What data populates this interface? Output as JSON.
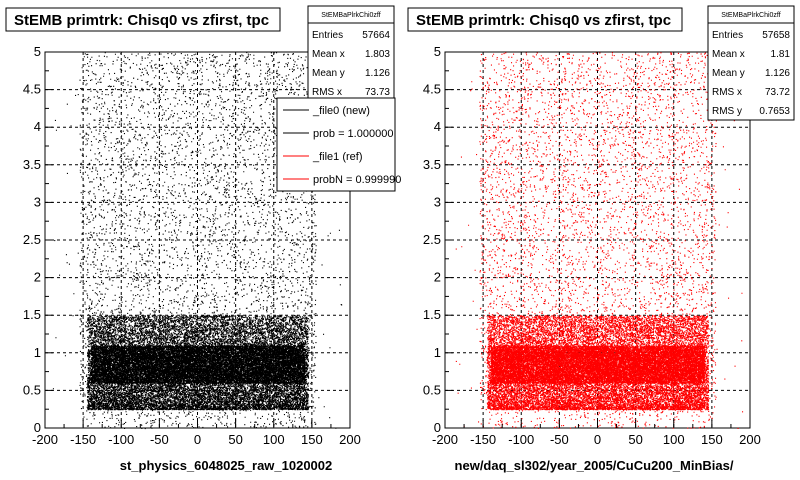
{
  "window": {
    "background": "#ffffff"
  },
  "chart_data": [
    {
      "type": "scatter",
      "title": "StEMB primtrk: Chisq0 vs zfirst, tpc",
      "xlabel": "st_physics_6048025_raw_1020002",
      "ylabel": "",
      "xlim": [
        -200,
        200
      ],
      "ylim": [
        0,
        5
      ],
      "x_ticks": [
        "-200",
        "-150",
        "-100",
        "-50",
        "0",
        "50",
        "100",
        "150",
        "200"
      ],
      "y_ticks": [
        "0",
        "0.5",
        "1",
        "1.5",
        "2",
        "2.5",
        "3",
        "3.5",
        "4",
        "4.5",
        "5"
      ],
      "grid": true,
      "marker_color": "#000000",
      "density": {
        "x_range": [
          -155,
          155
        ],
        "dense_y_range": [
          0.25,
          1.5
        ],
        "core_y_range": [
          0.6,
          1.1
        ],
        "sparse_y_max": 5,
        "note_points": "density approximation of ~57664 entries"
      },
      "stats": {
        "name": "StEMBaPlrkChi0zff",
        "rows": [
          {
            "label": "Entries",
            "value": "57664"
          },
          {
            "label": "Mean x",
            "value": "1.803"
          },
          {
            "label": "Mean y",
            "value": "1.126"
          },
          {
            "label": "RMS x",
            "value": "73.73"
          }
        ]
      },
      "legend": {
        "placement": "top-right",
        "entries": [
          {
            "label": "_file0 (new)",
            "color": "#000000"
          },
          {
            "label": "prob = 1.000000",
            "color": "#000000"
          },
          {
            "label": "_file1 (ref)",
            "color": "#ff0000"
          },
          {
            "label": "probN = 0.999990",
            "color": "#ff0000"
          }
        ]
      }
    },
    {
      "type": "scatter",
      "title": "StEMB primtrk: Chisq0 vs zfirst, tpc",
      "xlabel": "new/daq_sl302/year_2005/CuCu200_MinBias/",
      "ylabel": "",
      "xlim": [
        -200,
        200
      ],
      "ylim": [
        0,
        5
      ],
      "x_ticks": [
        "-200",
        "-150",
        "-100",
        "-50",
        "0",
        "50",
        "100",
        "150",
        "200"
      ],
      "y_ticks": [
        "0",
        "0.5",
        "1",
        "1.5",
        "2",
        "2.5",
        "3",
        "3.5",
        "4",
        "4.5",
        "5"
      ],
      "grid": true,
      "marker_color": "#ff0000",
      "density": {
        "x_range": [
          -155,
          155
        ],
        "dense_y_range": [
          0.25,
          1.5
        ],
        "core_y_range": [
          0.6,
          1.1
        ],
        "sparse_y_max": 5,
        "note_points": "density approximation of ~57658 entries"
      },
      "stats": {
        "name": "StEMBaPlrkChi0zff",
        "rows": [
          {
            "label": "Entries",
            "value": "57658"
          },
          {
            "label": "Mean x",
            "value": "1.81"
          },
          {
            "label": "Mean y",
            "value": "1.126"
          },
          {
            "label": "RMS x",
            "value": "73.72"
          },
          {
            "label": "RMS y",
            "value": "0.7653"
          }
        ]
      }
    }
  ]
}
